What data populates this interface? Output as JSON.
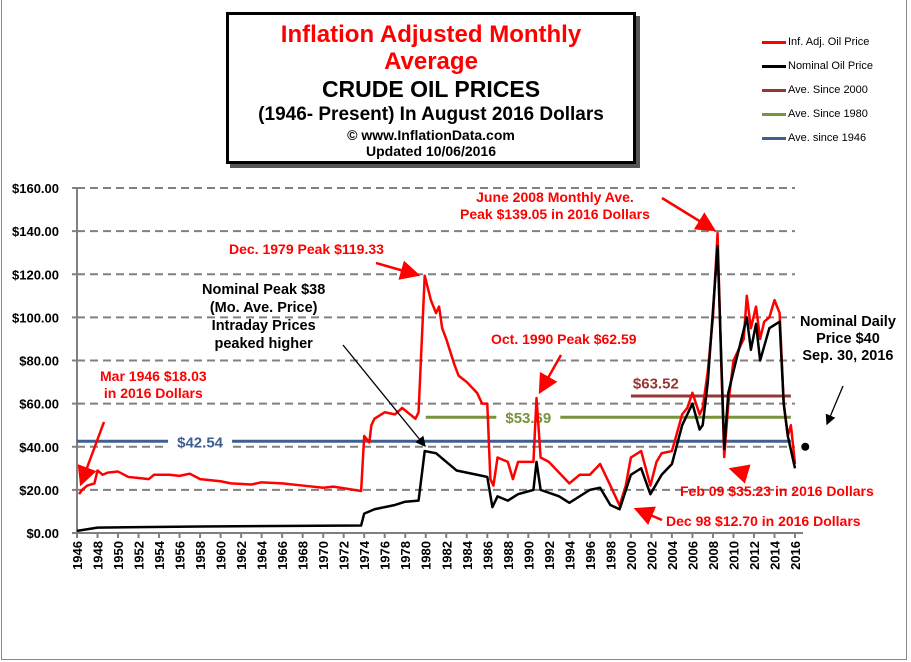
{
  "title": {
    "line1": "Inflation Adjusted Monthly",
    "line2": "Average",
    "line3": "CRUDE OIL PRICES",
    "line4": "(1946- Present) In August 2016 Dollars",
    "line5": "© www.InflationData.com",
    "line6": "Updated 10/06/2016"
  },
  "legend": [
    {
      "label": "Inf. Adj. Oil Price",
      "color": "#ff0000"
    },
    {
      "label": "Nominal Oil Price",
      "color": "#000000"
    },
    {
      "label": "Ave. Since 2000",
      "color": "#953735"
    },
    {
      "label": "Ave. Since 1980",
      "color": "#77933c"
    },
    {
      "label": "Ave. since 1946",
      "color": "#3e5f91"
    }
  ],
  "annotations": {
    "mar1946": [
      "Mar 1946 $18.03",
      "in 2016 Dollars"
    ],
    "dec1979": "Dec. 1979 Peak $119.33",
    "nominalPeak": [
      "Nominal Peak $38",
      "(Mo. Ave. Price)",
      "Intraday Prices",
      "peaked higher"
    ],
    "oct1990": "Oct. 1990 Peak $62.59",
    "june2008": [
      "June 2008 Monthly Ave.",
      "Peak $139.05 in 2016 Dollars"
    ],
    "nominalDaily": [
      "Nominal Daily",
      "Price $40",
      "Sep. 30, 2016"
    ],
    "feb09": "Feb 09 $35.23 in 2016 Dollars",
    "dec98": "Dec 98 $12.70 in 2016 Dollars"
  },
  "chart_data": {
    "type": "line",
    "title": "Inflation Adjusted Monthly Average CRUDE OIL PRICES (1946- Present) In August 2016 Dollars",
    "xlim": [
      1946,
      2016
    ],
    "ylim": [
      0,
      160
    ],
    "yticks": [
      0,
      20,
      40,
      60,
      80,
      100,
      120,
      140,
      160
    ],
    "ytick_labels": [
      "$0.00",
      "$20.00",
      "$40.00",
      "$60.00",
      "$80.00",
      "$100.00",
      "$120.00",
      "$140.00",
      "$160.00"
    ],
    "xticks": [
      1946,
      1948,
      1950,
      1952,
      1954,
      1956,
      1958,
      1960,
      1962,
      1964,
      1966,
      1968,
      1970,
      1972,
      1974,
      1976,
      1978,
      1980,
      1982,
      1984,
      1986,
      1988,
      1990,
      1992,
      1994,
      1996,
      1998,
      2000,
      2002,
      2004,
      2006,
      2008,
      2010,
      2012,
      2014,
      2016
    ],
    "grid": "horizontal dashed",
    "legend_position": "top-right",
    "series": [
      {
        "name": "Inf. Adj. Oil Price",
        "color": "#ff0000",
        "points": [
          [
            1946.2,
            18.03
          ],
          [
            1946.5,
            20
          ],
          [
            1947,
            22
          ],
          [
            1947.7,
            23
          ],
          [
            1948,
            29
          ],
          [
            1948.5,
            27
          ],
          [
            1949,
            28
          ],
          [
            1950,
            28.5
          ],
          [
            1951,
            26
          ],
          [
            1952,
            25.5
          ],
          [
            1953,
            25
          ],
          [
            1953.5,
            27
          ],
          [
            1955,
            27
          ],
          [
            1956,
            26.5
          ],
          [
            1957,
            27.5
          ],
          [
            1958,
            25
          ],
          [
            1960,
            24
          ],
          [
            1961,
            23
          ],
          [
            1963,
            22.5
          ],
          [
            1964,
            23.5
          ],
          [
            1966,
            23
          ],
          [
            1968,
            22
          ],
          [
            1970,
            21
          ],
          [
            1971,
            21.5
          ],
          [
            1973.7,
            19.5
          ],
          [
            1974,
            45
          ],
          [
            1974.5,
            42
          ],
          [
            1974.7,
            50
          ],
          [
            1975,
            53
          ],
          [
            1976,
            56
          ],
          [
            1977,
            55
          ],
          [
            1977.7,
            58
          ],
          [
            1979,
            53
          ],
          [
            1979.3,
            56
          ],
          [
            1979.9,
            119.33
          ],
          [
            1980.5,
            108
          ],
          [
            1981,
            102
          ],
          [
            1981.3,
            105
          ],
          [
            1981.6,
            95
          ],
          [
            1982,
            90
          ],
          [
            1982.8,
            78
          ],
          [
            1983.2,
            73
          ],
          [
            1984,
            70
          ],
          [
            1985,
            65
          ],
          [
            1985.5,
            60
          ],
          [
            1986,
            60
          ],
          [
            1986.3,
            25
          ],
          [
            1986.6,
            22
          ],
          [
            1987,
            35
          ],
          [
            1988,
            33
          ],
          [
            1988.5,
            25
          ],
          [
            1989,
            33
          ],
          [
            1990.5,
            33
          ],
          [
            1990.8,
            62.59
          ],
          [
            1991.2,
            35
          ],
          [
            1992,
            33
          ],
          [
            1993,
            28
          ],
          [
            1994,
            23
          ],
          [
            1995,
            27
          ],
          [
            1996,
            27
          ],
          [
            1997,
            32
          ],
          [
            1998,
            22
          ],
          [
            1998.9,
            12.7
          ],
          [
            1999.5,
            22
          ],
          [
            2000,
            35
          ],
          [
            2001,
            38
          ],
          [
            2001.9,
            22
          ],
          [
            2002.5,
            33
          ],
          [
            2003,
            37
          ],
          [
            2004,
            38
          ],
          [
            2005,
            55
          ],
          [
            2005.5,
            58
          ],
          [
            2006,
            65
          ],
          [
            2006.7,
            55
          ],
          [
            2007,
            58
          ],
          [
            2007.5,
            75
          ],
          [
            2008,
            100
          ],
          [
            2008.45,
            139.05
          ],
          [
            2008.8,
            80
          ],
          [
            2009.1,
            35.23
          ],
          [
            2009.5,
            60
          ],
          [
            2010,
            80
          ],
          [
            2011,
            90
          ],
          [
            2011.3,
            110
          ],
          [
            2011.7,
            95
          ],
          [
            2012.2,
            105
          ],
          [
            2012.6,
            90
          ],
          [
            2013,
            98
          ],
          [
            2013.5,
            100
          ],
          [
            2014,
            108
          ],
          [
            2014.5,
            102
          ],
          [
            2014.9,
            60
          ],
          [
            2015.3,
            45
          ],
          [
            2015.6,
            50
          ],
          [
            2016,
            32
          ]
        ]
      },
      {
        "name": "Nominal Oil Price",
        "color": "#000000",
        "points": [
          [
            1946,
            1
          ],
          [
            1948,
            2.5
          ],
          [
            1958,
            3
          ],
          [
            1973.7,
            3.5
          ],
          [
            1974,
            9
          ],
          [
            1975,
            11
          ],
          [
            1977,
            13
          ],
          [
            1978,
            14.5
          ],
          [
            1979.3,
            15
          ],
          [
            1979.9,
            38
          ],
          [
            1981,
            37
          ],
          [
            1982,
            33
          ],
          [
            1983,
            29
          ],
          [
            1985,
            27
          ],
          [
            1986,
            26
          ],
          [
            1986.5,
            12
          ],
          [
            1987,
            17
          ],
          [
            1988,
            15
          ],
          [
            1989,
            18
          ],
          [
            1990.5,
            20
          ],
          [
            1990.8,
            33
          ],
          [
            1991.2,
            20
          ],
          [
            1993,
            17
          ],
          [
            1994,
            14
          ],
          [
            1996,
            20
          ],
          [
            1997,
            21
          ],
          [
            1998,
            13
          ],
          [
            1998.9,
            11
          ],
          [
            2000,
            27
          ],
          [
            2001,
            30
          ],
          [
            2001.9,
            18
          ],
          [
            2003,
            27
          ],
          [
            2004,
            32
          ],
          [
            2005,
            50
          ],
          [
            2006,
            60
          ],
          [
            2006.7,
            48
          ],
          [
            2007,
            50
          ],
          [
            2007.5,
            70
          ],
          [
            2008.45,
            133
          ],
          [
            2009.1,
            39
          ],
          [
            2009.5,
            65
          ],
          [
            2010,
            75
          ],
          [
            2011.3,
            100
          ],
          [
            2011.7,
            85
          ],
          [
            2012.2,
            97
          ],
          [
            2012.6,
            80
          ],
          [
            2013.5,
            95
          ],
          [
            2014.5,
            98
          ],
          [
            2014.9,
            60
          ],
          [
            2015.3,
            45
          ],
          [
            2016,
            30
          ]
        ]
      },
      {
        "name": "Ave. Since 2000",
        "color": "#953735",
        "value": 63.52,
        "from": 2000,
        "to": 2015.6,
        "label": "$63.52"
      },
      {
        "name": "Ave. Since 1980",
        "color": "#77933c",
        "value": 53.69,
        "from": 1980,
        "to": 2015.6,
        "label": "$53.69"
      },
      {
        "name": "Ave. since 1946",
        "color": "#3e5f91",
        "value": 42.54,
        "from": 1946,
        "to": 2015.6,
        "label": "$42.54"
      }
    ],
    "nominal_daily_point": {
      "x": 2017,
      "y": 40
    }
  }
}
